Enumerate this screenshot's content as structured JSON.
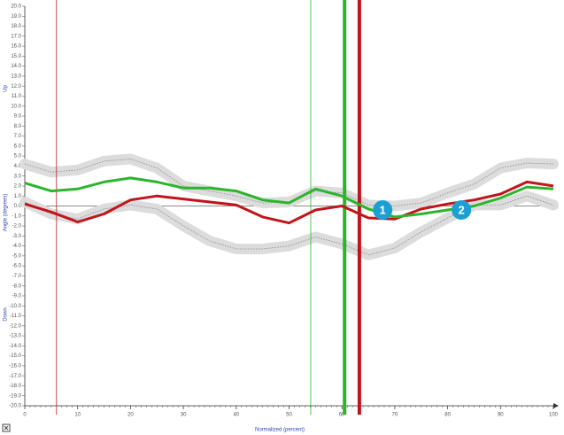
{
  "chart_data": {
    "type": "line",
    "x_label": "Normalized (percent)",
    "y_label": "Angle (degrees)",
    "up_label": "Up",
    "down_label": "Down",
    "x": [
      0,
      5,
      10,
      15,
      20,
      25,
      30,
      35,
      40,
      45,
      50,
      55,
      60,
      65,
      70,
      75,
      80,
      85,
      90,
      95,
      100
    ],
    "series": [
      {
        "style": "band",
        "color": "#888888",
        "values": [
          4.2,
          3.4,
          3.6,
          4.5,
          4.7,
          3.8,
          2.0,
          1.5,
          1.0,
          0.3,
          0.4,
          1.5,
          1.3,
          0.1,
          0,
          0.3,
          1.3,
          2.2,
          3.8,
          4.3,
          4.2
        ]
      },
      {
        "style": "band",
        "color": "#888888",
        "values": [
          0.4,
          -0.8,
          -1.3,
          -0.3,
          0.1,
          -0.3,
          -2.0,
          -3.5,
          -4.3,
          -4.3,
          -4.0,
          -3.1,
          -3.8,
          -4.9,
          -4.2,
          -2.6,
          -1.2,
          0.1,
          0.1,
          1.0,
          0.1
        ]
      },
      {
        "style": "solid",
        "color": "#c0151b",
        "values": [
          0.2,
          -0.6,
          -1.6,
          -0.8,
          0.6,
          1.0,
          0.7,
          0.4,
          0.1,
          -1.1,
          -1.7,
          -0.4,
          0,
          -1.2,
          -1.3,
          -0.3,
          0.2,
          0.6,
          1.2,
          2.4,
          2.0
        ]
      },
      {
        "style": "solid",
        "color": "#2cb52c",
        "values": [
          2.3,
          1.5,
          1.7,
          2.4,
          2.8,
          2.4,
          1.8,
          1.8,
          1.5,
          0.6,
          0.3,
          1.7,
          1.0,
          -0.3,
          -1.1,
          -0.8,
          -0.4,
          0,
          0.8,
          1.9,
          1.7
        ]
      }
    ],
    "events": [
      {
        "x": 6.0,
        "color": "#c0151b",
        "weight": "thin"
      },
      {
        "x": 54.1,
        "color": "#2cb52c",
        "weight": "thin"
      },
      {
        "x": 60.5,
        "color": "#2cb52c",
        "weight": "thick"
      },
      {
        "x": 63.3,
        "color": "#c0151b",
        "weight": "thick"
      }
    ],
    "markers": [
      {
        "label": "1",
        "x": 67.7,
        "y": -0.4,
        "color": "#1e9fd1"
      },
      {
        "label": "2",
        "x": 82.6,
        "y": -0.4,
        "color": "#1e9fd1"
      }
    ],
    "zero_line": true,
    "xlim": [
      0,
      100
    ],
    "xticks": [
      0,
      10,
      20,
      30,
      40,
      50,
      60,
      70,
      80,
      90,
      100
    ],
    "ylim": [
      -20,
      20
    ],
    "yticks": [
      {
        "value": 20,
        "label": "20.0"
      },
      {
        "value": 19,
        "label": "19.0"
      },
      {
        "value": 18,
        "label": "18.0"
      },
      {
        "value": 17,
        "label": "17.0"
      },
      {
        "value": 16,
        "label": "16.0"
      },
      {
        "value": 15,
        "label": "15.0"
      },
      {
        "value": 14,
        "label": "14.0"
      },
      {
        "value": 13,
        "label": "13.0"
      },
      {
        "value": 12,
        "label": "12.0"
      },
      {
        "value": 11,
        "label": "11.0"
      },
      {
        "value": 10,
        "label": "10.0"
      },
      {
        "value": 9,
        "label": "9.0"
      },
      {
        "value": 8,
        "label": "8.0"
      },
      {
        "value": 7,
        "label": "7.0"
      },
      {
        "value": 6,
        "label": "6.0"
      },
      {
        "value": 5,
        "label": "5.0"
      },
      {
        "value": 4,
        "label": "4.0"
      },
      {
        "value": 3,
        "label": "3.0"
      },
      {
        "value": 2,
        "label": "2.0"
      },
      {
        "value": 1,
        "label": "1.0"
      },
      {
        "value": 0,
        "label": "0.0"
      },
      {
        "value": -1,
        "label": "-1.0"
      },
      {
        "value": -2,
        "label": "-2.0"
      },
      {
        "value": -3,
        "label": "-3.0"
      },
      {
        "value": -4,
        "label": "-4.0"
      },
      {
        "value": -5,
        "label": "-5.0"
      },
      {
        "value": -6,
        "label": "-6.0"
      },
      {
        "value": -7,
        "label": "-7.0"
      },
      {
        "value": -8,
        "label": "-8.0"
      },
      {
        "value": -9,
        "label": "-9.0"
      },
      {
        "value": -10,
        "label": "-10.0"
      },
      {
        "value": -11,
        "label": "-11.0"
      },
      {
        "value": -12,
        "label": "-12.0"
      },
      {
        "value": -13,
        "label": "-13.0"
      },
      {
        "value": -14,
        "label": "-14.0"
      },
      {
        "value": -15,
        "label": "-15.0"
      },
      {
        "value": -16,
        "label": "-16.0"
      },
      {
        "value": -17,
        "label": "-17.0"
      },
      {
        "value": -18,
        "label": "-18.0"
      },
      {
        "value": -19,
        "label": "-19.0"
      },
      {
        "value": -20,
        "label": "-20.0"
      }
    ]
  }
}
